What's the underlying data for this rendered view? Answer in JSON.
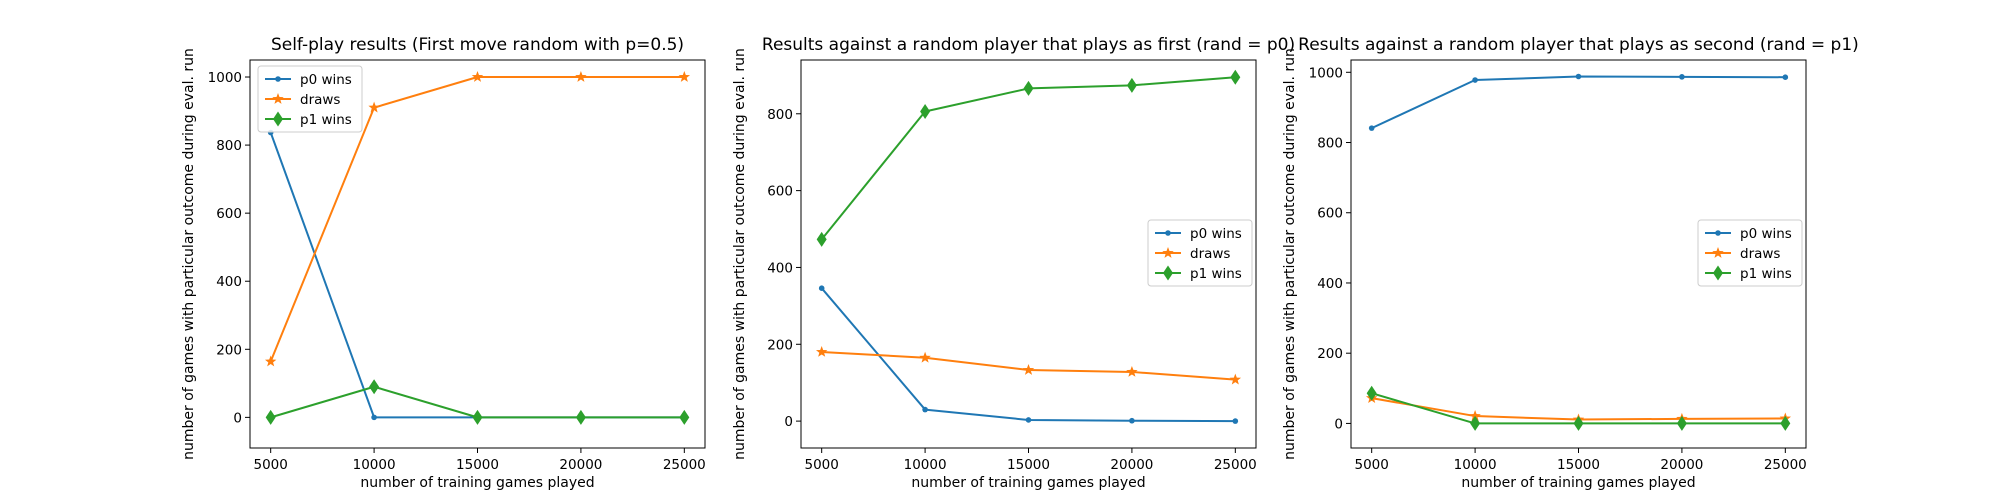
{
  "chart_data": [
    {
      "type": "line",
      "title": "Self-play results (First move random with p=0.5)",
      "xlabel": "number of training games played",
      "ylabel": "number of games with particular outcome during eval. run",
      "x": [
        5000,
        10000,
        15000,
        20000,
        25000
      ],
      "xticks": [
        5000,
        10000,
        15000,
        20000,
        25000
      ],
      "yticks": [
        0,
        200,
        400,
        600,
        800,
        1000
      ],
      "xlim": [
        4000,
        26000
      ],
      "ylim": [
        -90,
        1050
      ],
      "grid": false,
      "legend": "upper-left",
      "series": [
        {
          "name": "p0 wins",
          "values": [
            837,
            0,
            0,
            0,
            0
          ],
          "color": "#1f77b4",
          "marker": "dot"
        },
        {
          "name": "draws",
          "values": [
            164,
            910,
            1000,
            1000,
            1000
          ],
          "color": "#ff7f0e",
          "marker": "star"
        },
        {
          "name": "p1 wins",
          "values": [
            0,
            90,
            0,
            0,
            0
          ],
          "color": "#2ca02c",
          "marker": "diamond"
        }
      ]
    },
    {
      "type": "line",
      "title": "Results against a random player that plays as first (rand = p0)",
      "xlabel": "number of training games played",
      "ylabel": "number of games with particular outcome during eval. run",
      "x": [
        5000,
        10000,
        15000,
        20000,
        25000
      ],
      "xticks": [
        5000,
        10000,
        15000,
        20000,
        25000
      ],
      "yticks": [
        0,
        200,
        400,
        600,
        800
      ],
      "xlim": [
        4000,
        26000
      ],
      "ylim": [
        -70,
        940
      ],
      "grid": false,
      "legend": "center-right",
      "series": [
        {
          "name": "p0 wins",
          "values": [
            346,
            30,
            3,
            1,
            0
          ],
          "color": "#1f77b4",
          "marker": "dot"
        },
        {
          "name": "draws",
          "values": [
            180,
            165,
            133,
            128,
            108
          ],
          "color": "#ff7f0e",
          "marker": "star"
        },
        {
          "name": "p1 wins",
          "values": [
            473,
            806,
            866,
            874,
            895
          ],
          "color": "#2ca02c",
          "marker": "diamond"
        }
      ]
    },
    {
      "type": "line",
      "title": "Results against a random player that plays as second (rand = p1)",
      "xlabel": "number of training games played",
      "ylabel": "number of games with particular outcome during eval. run",
      "x": [
        5000,
        10000,
        15000,
        20000,
        25000
      ],
      "xticks": [
        5000,
        10000,
        15000,
        20000,
        25000
      ],
      "yticks": [
        0,
        200,
        400,
        600,
        800,
        1000
      ],
      "xlim": [
        4000,
        26000
      ],
      "ylim": [
        -70,
        1035
      ],
      "grid": false,
      "legend": "center-right",
      "series": [
        {
          "name": "p0 wins",
          "values": [
            841,
            978,
            988,
            987,
            986
          ],
          "color": "#1f77b4",
          "marker": "dot"
        },
        {
          "name": "draws",
          "values": [
            72,
            21,
            11,
            13,
            14
          ],
          "color": "#ff7f0e",
          "marker": "star"
        },
        {
          "name": "p1 wins",
          "values": [
            86,
            0,
            0,
            0,
            0
          ],
          "color": "#2ca02c",
          "marker": "diamond"
        }
      ]
    }
  ]
}
